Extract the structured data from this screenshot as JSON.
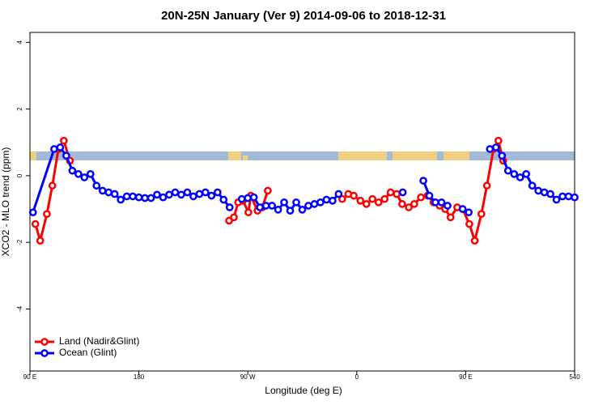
{
  "chart_data": {
    "type": "line",
    "title": "20N-25N January (Ver 9)   2014-09-06 to 2018-12-31",
    "x_label": "Longitude (deg E)",
    "y_label": "XCO2 - MLO trend (ppm)",
    "xlim": [
      90,
      540
    ],
    "ylim": [
      -5.86,
      4.3
    ],
    "xticks": [
      {
        "value": 90,
        "label": "90 E"
      },
      180,
      {
        "value": 270,
        "label": "90 W"
      },
      {
        "value": 360,
        "label": "0"
      },
      {
        "value": 450,
        "label": "90 E"
      },
      540
    ],
    "yticks": [
      -4,
      -2,
      0,
      2,
      4
    ],
    "legend": "bottom-left",
    "series": [
      {
        "name": "Land (Nadir&Glint)",
        "color": "#ff0000",
        "x": [
          94.5,
          98.5,
          104,
          108.5,
          113.5,
          118,
          123,
          250,
          254.5,
          258.5,
          262,
          266,
          270.5,
          272.5,
          278,
          282,
          286.5,
          344.5,
          348,
          353,
          357.5,
          363,
          368,
          373,
          378,
          383,
          388,
          393,
          397.5,
          403,
          407.5,
          413,
          418.5,
          423.5,
          428.5,
          433,
          437.5,
          443,
          447.5,
          453,
          457.5,
          463,
          467.5,
          473,
          477,
          481
        ],
        "values": [
          -1.45,
          -1.95,
          -1.15,
          -0.3,
          0.8,
          1.05,
          0.45,
          null,
          -1.35,
          -1.25,
          -0.8,
          -0.75,
          -1.1,
          -0.6,
          -1.05,
          -0.95,
          -0.45,
          null,
          -0.7,
          -0.55,
          -0.6,
          -0.75,
          -0.85,
          -0.7,
          -0.8,
          -0.7,
          -0.5,
          -0.55,
          -0.85,
          -0.95,
          -0.85,
          -0.65,
          -0.6,
          -0.8,
          -0.9,
          -1.0,
          -1.25,
          -0.95,
          -1.0,
          -1.45,
          -1.95,
          -1.15,
          -0.3,
          0.8,
          1.05,
          0.45
        ]
      },
      {
        "name": "Ocean (Glint)",
        "color": "#0000ff",
        "x": [
          92.5,
          110,
          115,
          120,
          125,
          130,
          135,
          140,
          145,
          150,
          155,
          160,
          165,
          170,
          175,
          180,
          185,
          190,
          195,
          200,
          205,
          210,
          215,
          220,
          225,
          230,
          235,
          240,
          245,
          250,
          255,
          260,
          265,
          270,
          275,
          280,
          285,
          290,
          295,
          300,
          305,
          310,
          315,
          320,
          325,
          330,
          335,
          340,
          345,
          370,
          398,
          405,
          415,
          420,
          425,
          430,
          435,
          440,
          447.5,
          452.5,
          460,
          470,
          475,
          480,
          485,
          490,
          495,
          500,
          505,
          510,
          515,
          520,
          525,
          530,
          535,
          540
        ],
        "values": [
          -1.1,
          0.8,
          0.85,
          0.6,
          0.15,
          0.05,
          -0.05,
          0.05,
          -0.3,
          -0.45,
          -0.5,
          -0.55,
          -0.72,
          -0.62,
          -0.62,
          -0.65,
          -0.67,
          -0.67,
          -0.57,
          -0.65,
          -0.57,
          -0.5,
          -0.57,
          -0.5,
          -0.62,
          -0.55,
          -0.5,
          -0.6,
          -0.5,
          -0.72,
          -0.95,
          null,
          -0.7,
          -0.67,
          -0.65,
          -0.95,
          -0.9,
          -0.9,
          -1.02,
          -0.8,
          -1.05,
          -0.8,
          -1.02,
          -0.9,
          -0.85,
          -0.8,
          -0.72,
          -0.75,
          -0.55,
          null,
          -0.5,
          null,
          -0.15,
          -0.6,
          -0.8,
          -0.8,
          -0.9,
          null,
          -1.0,
          -1.1,
          null,
          0.8,
          0.85,
          0.6,
          0.15,
          0.05,
          -0.05,
          0.05,
          -0.3,
          -0.45,
          -0.5,
          -0.55,
          -0.72,
          -0.62,
          -0.62,
          -0.65
        ]
      }
    ]
  }
}
